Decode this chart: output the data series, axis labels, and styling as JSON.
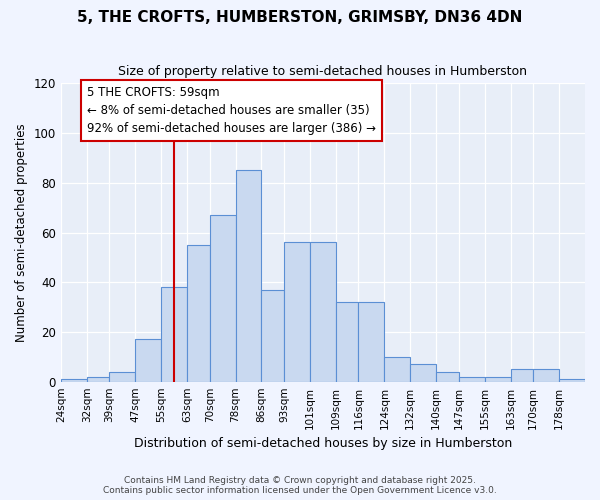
{
  "title": "5, THE CROFTS, HUMBERSTON, GRIMSBY, DN36 4DN",
  "subtitle": "Size of property relative to semi-detached houses in Humberston",
  "xlabel": "Distribution of semi-detached houses by size in Humberston",
  "ylabel": "Number of semi-detached properties",
  "bin_labels": [
    "24sqm",
    "32sqm",
    "39sqm",
    "47sqm",
    "55sqm",
    "63sqm",
    "70sqm",
    "78sqm",
    "86sqm",
    "93sqm",
    "101sqm",
    "109sqm",
    "116sqm",
    "124sqm",
    "132sqm",
    "140sqm",
    "147sqm",
    "155sqm",
    "163sqm",
    "170sqm",
    "178sqm"
  ],
  "bin_edges": [
    24,
    32,
    39,
    47,
    55,
    63,
    70,
    78,
    86,
    93,
    101,
    109,
    116,
    124,
    132,
    140,
    147,
    155,
    163,
    170,
    178,
    186
  ],
  "counts": [
    1,
    2,
    4,
    17,
    38,
    55,
    67,
    85,
    37,
    56,
    56,
    32,
    32,
    10,
    7,
    4,
    2,
    2,
    5,
    5,
    1
  ],
  "bar_facecolor": "#c9d9f0",
  "bar_edgecolor": "#5b8fd4",
  "vline_x": 59,
  "vline_color": "#cc0000",
  "annotation_text": "5 THE CROFTS: 59sqm\n← 8% of semi-detached houses are smaller (35)\n92% of semi-detached houses are larger (386) →",
  "bg_color": "#f0f4ff",
  "plot_bg_color": "#e8eef8",
  "ylim": [
    0,
    120
  ],
  "yticks": [
    0,
    20,
    40,
    60,
    80,
    100,
    120
  ],
  "footer_line1": "Contains HM Land Registry data © Crown copyright and database right 2025.",
  "footer_line2": "Contains public sector information licensed under the Open Government Licence v3.0."
}
